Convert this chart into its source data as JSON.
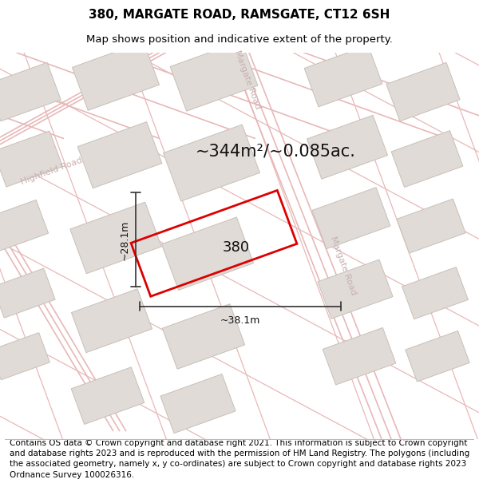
{
  "title": "380, MARGATE ROAD, RAMSGATE, CT12 6SH",
  "subtitle": "Map shows position and indicative extent of the property.",
  "area_text": "~344m²/~0.085ac.",
  "dim_width": "~38.1m",
  "dim_height": "~28.1m",
  "plot_label": "380",
  "copyright_text": "Contains OS data © Crown copyright and database right 2021. This information is subject to Crown copyright and database rights 2023 and is reproduced with the permission of HM Land Registry. The polygons (including the associated geometry, namely x, y co-ordinates) are subject to Crown copyright and database rights 2023 Ordnance Survey 100026316.",
  "map_bg": "#f5f2ef",
  "road_line_color": "#e8b8b8",
  "road_text_color": "#c8b0b0",
  "building_face_color": "#e0dbd6",
  "building_edge_color": "#c8c0b8",
  "plot_edge_color": "#dd0000",
  "title_fontsize": 11,
  "subtitle_fontsize": 9.5,
  "area_fontsize": 15,
  "label_fontsize": 13,
  "dim_fontsize": 9,
  "road_label_fontsize": 8,
  "copyright_fontsize": 7.5
}
